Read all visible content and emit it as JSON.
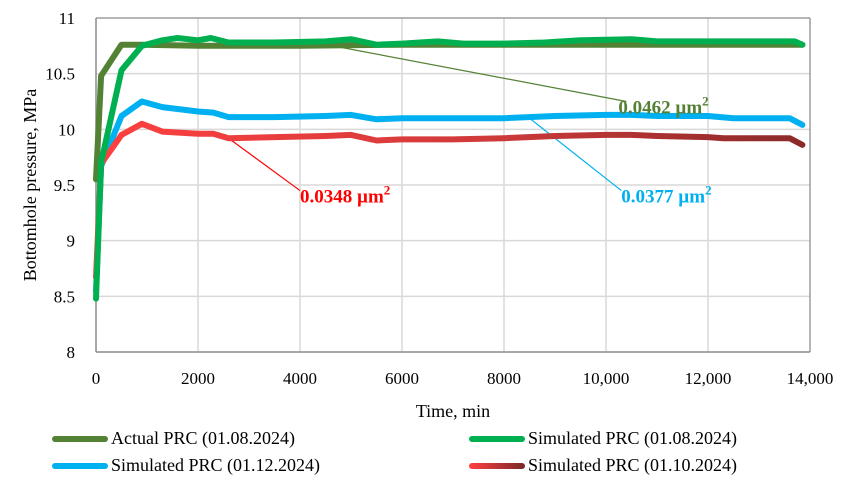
{
  "chart_data": {
    "type": "line",
    "title": "",
    "xlabel": "Time, min",
    "ylabel": "Bottomhole pressure, MPa",
    "xlim": [
      0,
      14000
    ],
    "ylim": [
      8,
      11
    ],
    "grid": true,
    "x_ticks": [
      0,
      2000,
      4000,
      6000,
      8000,
      10000,
      12000,
      14000
    ],
    "x_tick_labels": [
      "0",
      "2000",
      "4000",
      "6000",
      "8000",
      "10,000",
      "12,000",
      "14,000"
    ],
    "y_ticks": [
      8,
      8.5,
      9,
      9.5,
      10,
      10.5,
      11
    ],
    "y_tick_labels": [
      "8",
      "8.5",
      "9",
      "9.5",
      "10",
      "10.5",
      "11"
    ],
    "legend_position": "bottom",
    "series": [
      {
        "name": "Actual PRC (01.08.2024)",
        "color": "#548235",
        "x": [
          0,
          100,
          500,
          900,
          2000,
          4000,
          6000,
          8000,
          10000,
          12000,
          13700,
          13850
        ],
        "y": [
          9.55,
          10.48,
          10.76,
          10.76,
          10.75,
          10.75,
          10.76,
          10.76,
          10.76,
          10.76,
          10.76,
          10.76
        ]
      },
      {
        "name": "Simulated PRC (01.08.2024)",
        "color": "#00B050",
        "x": [
          0,
          100,
          500,
          900,
          1300,
          1600,
          2000,
          2250,
          2600,
          3500,
          4500,
          5000,
          5500,
          6000,
          6700,
          7200,
          8000,
          8800,
          9500,
          10500,
          11000,
          12000,
          13000,
          13700,
          13850
        ],
        "y": [
          8.48,
          9.7,
          10.53,
          10.75,
          10.8,
          10.82,
          10.8,
          10.82,
          10.78,
          10.78,
          10.79,
          10.81,
          10.76,
          10.77,
          10.79,
          10.77,
          10.77,
          10.78,
          10.8,
          10.81,
          10.79,
          10.79,
          10.79,
          10.79,
          10.76
        ]
      },
      {
        "name": "Simulated PRC (01.12.2024)",
        "color": "#00B0F0",
        "x": [
          0,
          100,
          500,
          900,
          1300,
          2000,
          2300,
          2600,
          3500,
          4500,
          5000,
          5500,
          6000,
          7000,
          8000,
          9000,
          10000,
          10500,
          11000,
          12000,
          12500,
          13600,
          13850
        ],
        "y": [
          8.55,
          9.67,
          10.12,
          10.25,
          10.2,
          10.16,
          10.15,
          10.11,
          10.11,
          10.12,
          10.13,
          10.09,
          10.1,
          10.1,
          10.1,
          10.12,
          10.13,
          10.13,
          10.12,
          10.12,
          10.1,
          10.1,
          10.04
        ]
      },
      {
        "name": "Simulated PRC (01.10.2024)",
        "color": "#FF4040",
        "color_end": "#8B2A2A",
        "x": [
          0,
          100,
          500,
          900,
          1300,
          2000,
          2300,
          2600,
          3500,
          4500,
          5000,
          5500,
          6000,
          7000,
          8000,
          9000,
          10000,
          10500,
          11000,
          12000,
          12300,
          13600,
          13850
        ],
        "y": [
          8.67,
          9.69,
          9.95,
          10.05,
          9.98,
          9.96,
          9.96,
          9.92,
          9.93,
          9.94,
          9.95,
          9.9,
          9.91,
          9.91,
          9.92,
          9.94,
          9.95,
          9.95,
          9.94,
          9.93,
          9.92,
          9.92,
          9.86
        ]
      }
    ],
    "annotations": [
      {
        "text": "0.0462 µm",
        "sup": "2",
        "color": "#548235",
        "series": "Simulated PRC (01.08.2024)",
        "anchor_x": 4300,
        "anchor_value": 10.78,
        "label_x": 10400,
        "label_value": 10.25
      },
      {
        "text": "0.0377 µm",
        "sup": "2",
        "color": "#00B0F0",
        "series": "Simulated PRC (01.12.2024)",
        "anchor_x": 8500,
        "anchor_value": 10.1,
        "label_x": 10300,
        "label_value": 9.45
      },
      {
        "text": "0.0348 µm",
        "sup": "2",
        "color": "#FF0000",
        "series": "Simulated PRC (01.10.2024)",
        "anchor_x": 2600,
        "anchor_value": 9.92,
        "label_x": 4000,
        "label_value": 9.45
      }
    ]
  }
}
